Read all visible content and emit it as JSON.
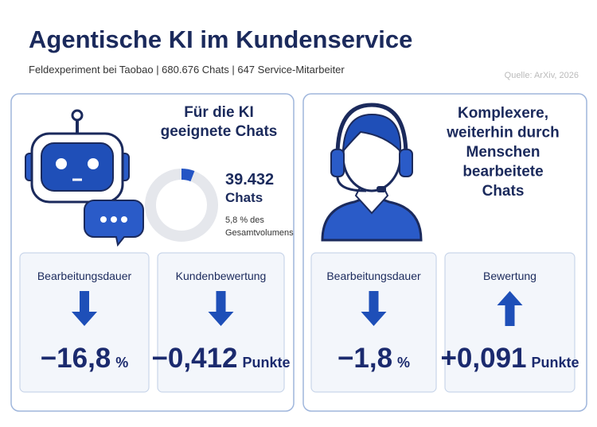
{
  "header": {
    "title": "Agentische KI im Kundenservice",
    "subtitle": "Feldexperiment bei Taobao | 680.676 Chats | 647 Service-Mitarbeiter",
    "source": "Quelle: ArXiv, 2026"
  },
  "panels": [
    {
      "title": [
        "Für die KI",
        "geeignete Chats"
      ],
      "count": "39.432",
      "count_unit": "Chats",
      "share": 5.8,
      "share_label": [
        "5,8 % des",
        "Gesamtvolumens"
      ],
      "metrics": [
        {
          "label": "Bearbeitungsdauer",
          "direction": "down",
          "value": "−16,8",
          "unit": "%"
        },
        {
          "label": "Kundenbewertung",
          "direction": "down",
          "value": "−0,412",
          "unit": "Punkte"
        }
      ]
    },
    {
      "title": [
        "Komplexere,",
        "weiterhin durch",
        "Menschen",
        "bearbeitete",
        "Chats"
      ],
      "metrics": [
        {
          "label": "Bearbeitungsdauer",
          "direction": "down",
          "value": "−1,8",
          "unit": "%"
        },
        {
          "label": "Bewertung",
          "direction": "up",
          "value": "+0,091",
          "unit": "Punkte"
        }
      ]
    }
  ]
}
